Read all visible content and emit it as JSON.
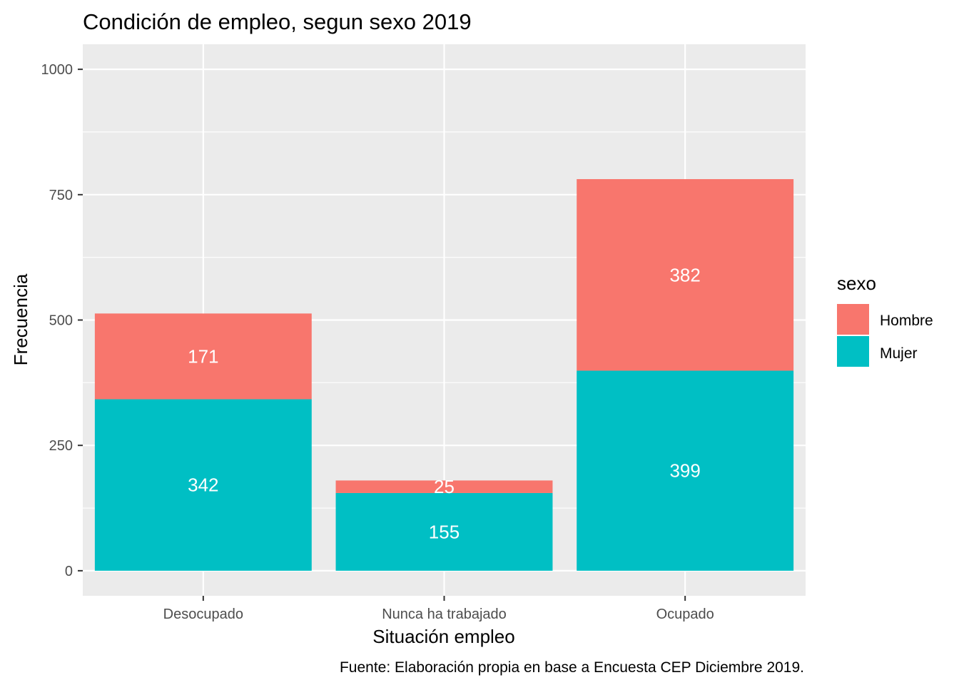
{
  "chart_data": {
    "type": "bar",
    "stacked": true,
    "title": "Condición de empleo, segun sexo 2019",
    "xlabel": "Situación empleo",
    "ylabel": "Frecuencia",
    "caption": "Fuente: Elaboración propia en base a Encuesta CEP Diciembre 2019.",
    "categories": [
      "Desocupado",
      "Nunca ha trabajado",
      "Ocupado"
    ],
    "series": [
      {
        "name": "Mujer",
        "values": [
          342,
          155,
          399
        ],
        "labels": [
          "342",
          "155",
          "399"
        ],
        "color": "#00BFC4"
      },
      {
        "name": "Hombre",
        "values": [
          171,
          25,
          382
        ],
        "labels": [
          "171",
          "25",
          "382"
        ],
        "color": "#F8766D"
      }
    ],
    "yticks": [
      0,
      250,
      500,
      750,
      1000
    ],
    "ytick_labels": [
      "0",
      "250",
      "500",
      "750",
      "1000"
    ],
    "ylim": [
      -50,
      1050
    ],
    "grid": true,
    "legend": {
      "title": "sexo",
      "position": "right",
      "entries": [
        "Hombre",
        "Mujer"
      ]
    },
    "panel_background": "#EBEBEB",
    "grid_color": "#FFFFFF"
  }
}
